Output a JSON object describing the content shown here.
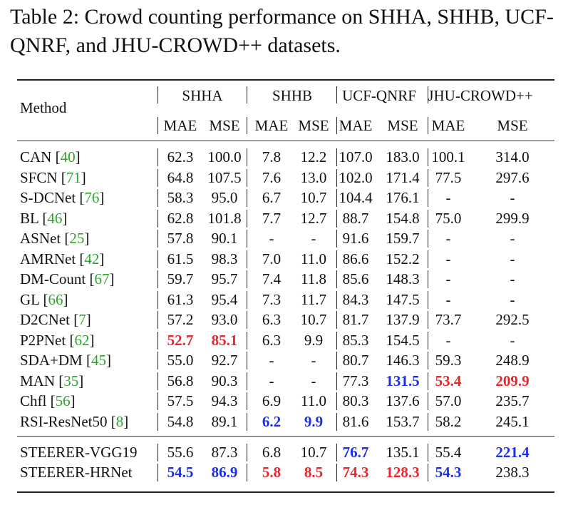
{
  "caption": "Table 2: Crowd counting performance on SHHA, SHHB, UCF-QNRF, and JHU-CROWD++ datasets.",
  "columns": {
    "method": "Method",
    "datasets": [
      "SHHA",
      "SHHB",
      "UCF-QNRF",
      "JHU-CROWD++"
    ],
    "metrics": [
      "MAE",
      "MSE",
      "MAE",
      "MSE",
      "MAE",
      "MSE",
      "MAE",
      "MSE"
    ]
  },
  "rows": [
    {
      "name": "CAN",
      "cite": "40",
      "vals": [
        "62.3",
        "100.0",
        "7.8",
        "12.2",
        "107.0",
        "183.0",
        "100.1",
        "314.0"
      ],
      "hl": []
    },
    {
      "name": "SFCN",
      "cite": "71",
      "vals": [
        "64.8",
        "107.5",
        "7.6",
        "13.0",
        "102.0",
        "171.4",
        "77.5",
        "297.6"
      ],
      "hl": []
    },
    {
      "name": "S-DCNet",
      "cite": "76",
      "vals": [
        "58.3",
        "95.0",
        "6.7",
        "10.7",
        "104.4",
        "176.1",
        "-",
        "-"
      ],
      "hl": []
    },
    {
      "name": "BL",
      "cite": "46",
      "vals": [
        "62.8",
        "101.8",
        "7.7",
        "12.7",
        "88.7",
        "154.8",
        "75.0",
        "299.9"
      ],
      "hl": []
    },
    {
      "name": "ASNet",
      "cite": "25",
      "vals": [
        "57.8",
        "90.1",
        "-",
        "-",
        "91.6",
        "159.7",
        "-",
        "-"
      ],
      "hl": []
    },
    {
      "name": "AMRNet",
      "cite": "42",
      "vals": [
        "61.5",
        "98.3",
        "7.0",
        "11.0",
        "86.6",
        "152.2",
        "-",
        "-"
      ],
      "hl": []
    },
    {
      "name": "DM-Count",
      "cite": "67",
      "vals": [
        "59.7",
        "95.7",
        "7.4",
        "11.8",
        "85.6",
        "148.3",
        "-",
        "-"
      ],
      "hl": []
    },
    {
      "name": "GL",
      "cite": "66",
      "vals": [
        "61.3",
        "95.4",
        "7.3",
        "11.7",
        "84.3",
        "147.5",
        "-",
        "-"
      ],
      "hl": []
    },
    {
      "name": "D2CNet",
      "cite": "7",
      "vals": [
        "57.2",
        "93.0",
        "6.3",
        "10.7",
        "81.7",
        "137.9",
        "73.7",
        "292.5"
      ],
      "hl": []
    },
    {
      "name": "P2PNet",
      "cite": "62",
      "vals": [
        "52.7",
        "85.1",
        "6.3",
        "9.9",
        "85.3",
        "154.5",
        "-",
        "-"
      ],
      "hl": [
        "red",
        "red",
        "",
        "",
        "",
        "",
        "",
        ""
      ]
    },
    {
      "name": "SDA+DM",
      "cite": "45",
      "vals": [
        "55.0",
        "92.7",
        "-",
        "-",
        "80.7",
        "146.3",
        "59.3",
        "248.9"
      ],
      "hl": []
    },
    {
      "name": "MAN",
      "cite": "35",
      "vals": [
        "56.8",
        "90.3",
        "-",
        "-",
        "77.3",
        "131.5",
        "53.4",
        "209.9"
      ],
      "hl": [
        "",
        "",
        "",
        "",
        "",
        "blue",
        "red",
        "red"
      ]
    },
    {
      "name": "Chfl",
      "cite": "56",
      "vals": [
        "57.5",
        "94.3",
        "6.9",
        "11.0",
        "80.3",
        "137.6",
        "57.0",
        "235.7"
      ],
      "hl": []
    },
    {
      "name": "RSI-ResNet50",
      "cite": "8",
      "vals": [
        "54.8",
        "89.1",
        "6.2",
        "9.9",
        "81.6",
        "153.7",
        "58.2",
        "245.1"
      ],
      "hl": [
        "",
        "",
        "blue",
        "blue",
        "",
        "",
        "",
        ""
      ]
    },
    {
      "name": "STEERER-VGG19",
      "cite": "",
      "vals": [
        "55.6",
        "87.3",
        "6.8",
        "10.7",
        "76.7",
        "135.1",
        "55.4",
        "221.4"
      ],
      "hl": [
        "",
        "",
        "",
        "",
        "blue",
        "",
        "",
        "blue"
      ]
    },
    {
      "name": "STEERER-HRNet",
      "cite": "",
      "vals": [
        "54.5",
        "86.9",
        "5.8",
        "8.5",
        "74.3",
        "128.3",
        "54.3",
        "238.3"
      ],
      "hl": [
        "blue",
        "blue",
        "red",
        "red",
        "red",
        "red",
        "blue",
        ""
      ]
    }
  ],
  "colors": {
    "red": "#e8262c",
    "blue": "#1b2ee8",
    "cite": "#2ea42e"
  }
}
